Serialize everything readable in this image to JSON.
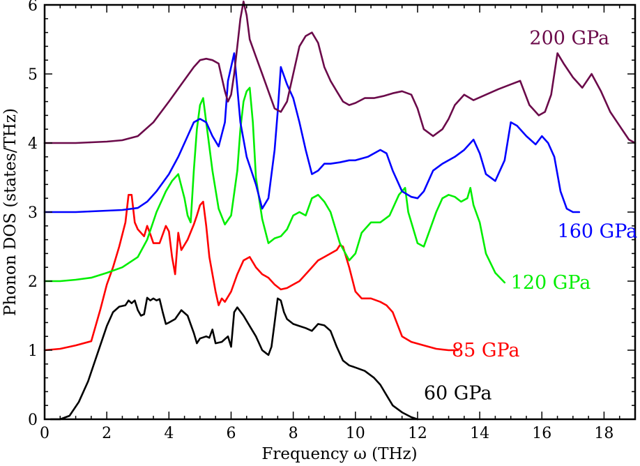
{
  "chart_data": {
    "type": "line",
    "title": "",
    "xlabel": "Frequency ω (THz)",
    "ylabel": "Phonon DOS (states/THz)",
    "xlim": [
      0,
      19
    ],
    "ylim": [
      0,
      6
    ],
    "xticks": [
      0,
      2,
      4,
      6,
      8,
      10,
      12,
      14,
      16,
      18
    ],
    "yticks": [
      0,
      1,
      2,
      3,
      4,
      5,
      6
    ],
    "xtick_labels": [
      "0",
      "2",
      "4",
      "6",
      "8",
      "10",
      "12",
      "14",
      "16",
      "18"
    ],
    "ytick_labels": [
      "0",
      "1",
      "2",
      "3",
      "4",
      "5",
      "6"
    ],
    "grid": false,
    "series": [
      {
        "name": "60 GPa",
        "color": "#000000",
        "label_anchor": [
          12.2,
          0.38
        ],
        "x": [
          0.2,
          0.5,
          0.8,
          1.1,
          1.4,
          1.7,
          2.0,
          2.2,
          2.4,
          2.6,
          2.7,
          2.8,
          2.9,
          3.0,
          3.1,
          3.2,
          3.3,
          3.4,
          3.5,
          3.6,
          3.7,
          3.8,
          3.9,
          4.0,
          4.2,
          4.4,
          4.6,
          4.8,
          4.9,
          5.0,
          5.2,
          5.3,
          5.4,
          5.5,
          5.7,
          5.9,
          6.0,
          6.1,
          6.2,
          6.4,
          6.6,
          6.8,
          7.0,
          7.2,
          7.3,
          7.4,
          7.5,
          7.6,
          7.7,
          7.8,
          8.0,
          8.2,
          8.4,
          8.6,
          8.8,
          9.0,
          9.2,
          9.4,
          9.6,
          9.8,
          10.0,
          10.3,
          10.6,
          10.8,
          11.0,
          11.2,
          11.5,
          11.8,
          12.0
        ],
        "y": [
          0.0,
          0.0,
          0.05,
          0.25,
          0.55,
          0.95,
          1.35,
          1.55,
          1.63,
          1.65,
          1.72,
          1.68,
          1.72,
          1.58,
          1.5,
          1.52,
          1.76,
          1.72,
          1.75,
          1.72,
          1.74,
          1.55,
          1.38,
          1.4,
          1.45,
          1.58,
          1.5,
          1.25,
          1.1,
          1.17,
          1.2,
          1.18,
          1.3,
          1.1,
          1.12,
          1.2,
          1.05,
          1.55,
          1.62,
          1.5,
          1.35,
          1.2,
          1.0,
          0.93,
          1.05,
          1.4,
          1.75,
          1.72,
          1.55,
          1.45,
          1.38,
          1.35,
          1.32,
          1.28,
          1.38,
          1.36,
          1.28,
          1.05,
          0.85,
          0.78,
          0.75,
          0.7,
          0.6,
          0.5,
          0.35,
          0.2,
          0.1,
          0.03,
          0.0
        ]
      },
      {
        "name": "85 GPa",
        "color": "#ff0000",
        "label_anchor": [
          13.1,
          1.0
        ],
        "x": [
          0.0,
          0.5,
          1.0,
          1.5,
          1.8,
          2.0,
          2.2,
          2.4,
          2.6,
          2.7,
          2.8,
          2.9,
          3.0,
          3.1,
          3.2,
          3.3,
          3.4,
          3.5,
          3.7,
          3.9,
          4.0,
          4.1,
          4.2,
          4.3,
          4.4,
          4.6,
          4.8,
          4.9,
          5.0,
          5.1,
          5.2,
          5.3,
          5.5,
          5.6,
          5.7,
          5.8,
          6.0,
          6.2,
          6.4,
          6.6,
          6.8,
          7.0,
          7.2,
          7.4,
          7.6,
          7.8,
          8.0,
          8.2,
          8.4,
          8.6,
          8.8,
          9.0,
          9.2,
          9.4,
          9.5,
          9.6,
          9.8,
          10.0,
          10.2,
          10.5,
          10.8,
          11.0,
          11.2,
          11.5,
          11.8,
          12.2,
          12.6,
          13.0,
          13.3
        ],
        "y": [
          1.0,
          1.02,
          1.07,
          1.13,
          1.6,
          1.95,
          2.2,
          2.5,
          2.85,
          3.25,
          3.25,
          2.85,
          2.75,
          2.7,
          2.65,
          2.8,
          2.68,
          2.55,
          2.55,
          2.8,
          2.72,
          2.35,
          2.1,
          2.7,
          2.45,
          2.6,
          2.82,
          2.95,
          3.1,
          3.15,
          2.8,
          2.35,
          1.85,
          1.65,
          1.75,
          1.7,
          1.85,
          2.1,
          2.3,
          2.35,
          2.2,
          2.1,
          2.05,
          1.95,
          1.88,
          1.9,
          1.95,
          2.0,
          2.1,
          2.2,
          2.3,
          2.35,
          2.4,
          2.45,
          2.52,
          2.5,
          2.2,
          1.85,
          1.75,
          1.75,
          1.7,
          1.65,
          1.55,
          1.2,
          1.12,
          1.07,
          1.02,
          1.0,
          1.0
        ]
      },
      {
        "name": "120 GPa",
        "color": "#00ee00",
        "label_anchor": [
          15.0,
          1.98
        ],
        "x": [
          0.0,
          0.5,
          1.0,
          1.5,
          2.0,
          2.5,
          3.0,
          3.3,
          3.6,
          3.9,
          4.1,
          4.3,
          4.5,
          4.6,
          4.7,
          4.8,
          4.9,
          5.0,
          5.1,
          5.2,
          5.4,
          5.6,
          5.8,
          6.0,
          6.2,
          6.3,
          6.4,
          6.5,
          6.6,
          6.7,
          6.8,
          7.0,
          7.2,
          7.4,
          7.6,
          7.8,
          8.0,
          8.2,
          8.4,
          8.6,
          8.8,
          9.0,
          9.2,
          9.5,
          9.8,
          10.0,
          10.2,
          10.5,
          10.8,
          11.1,
          11.4,
          11.6,
          11.7,
          11.8,
          12.0,
          12.2,
          12.4,
          12.6,
          12.8,
          13.0,
          13.2,
          13.4,
          13.6,
          13.7,
          13.8,
          14.0,
          14.2,
          14.5,
          14.8
        ],
        "y": [
          2.0,
          2.0,
          2.02,
          2.05,
          2.12,
          2.2,
          2.35,
          2.6,
          3.0,
          3.3,
          3.45,
          3.55,
          3.2,
          2.95,
          2.85,
          3.6,
          4.2,
          4.55,
          4.65,
          4.3,
          3.6,
          3.05,
          2.82,
          2.95,
          3.6,
          4.2,
          4.6,
          4.75,
          4.8,
          4.3,
          3.5,
          2.9,
          2.55,
          2.62,
          2.65,
          2.75,
          2.95,
          3.0,
          2.95,
          3.2,
          3.25,
          3.15,
          3.0,
          2.55,
          2.3,
          2.4,
          2.7,
          2.85,
          2.85,
          2.95,
          3.25,
          3.35,
          3.0,
          2.85,
          2.55,
          2.5,
          2.75,
          3.0,
          3.2,
          3.25,
          3.22,
          3.15,
          3.2,
          3.35,
          3.1,
          2.85,
          2.4,
          2.12,
          1.98
        ]
      },
      {
        "name": "160 GPa",
        "color": "#0000ff",
        "label_anchor": [
          16.5,
          2.72
        ],
        "x": [
          0.0,
          0.5,
          1.0,
          1.5,
          2.0,
          2.5,
          3.0,
          3.3,
          3.6,
          4.0,
          4.3,
          4.6,
          4.8,
          5.0,
          5.2,
          5.4,
          5.6,
          5.8,
          5.9,
          6.0,
          6.1,
          6.2,
          6.3,
          6.5,
          6.8,
          7.0,
          7.2,
          7.4,
          7.5,
          7.6,
          7.8,
          8.0,
          8.2,
          8.4,
          8.6,
          8.8,
          9.0,
          9.2,
          9.5,
          9.8,
          10.0,
          10.4,
          10.8,
          11.0,
          11.2,
          11.5,
          11.8,
          12.0,
          12.2,
          12.5,
          12.8,
          13.2,
          13.5,
          13.8,
          14.0,
          14.2,
          14.5,
          14.8,
          15.0,
          15.2,
          15.5,
          15.8,
          16.0,
          16.2,
          16.4,
          16.6,
          16.8,
          17.0,
          17.2
        ],
        "y": [
          3.0,
          3.0,
          3.0,
          3.01,
          3.02,
          3.03,
          3.06,
          3.15,
          3.3,
          3.55,
          3.8,
          4.1,
          4.3,
          4.35,
          4.3,
          4.1,
          3.95,
          4.3,
          4.9,
          5.1,
          5.3,
          4.8,
          4.3,
          3.8,
          3.4,
          3.05,
          3.2,
          3.9,
          4.45,
          5.1,
          4.85,
          4.65,
          4.3,
          3.9,
          3.55,
          3.6,
          3.7,
          3.7,
          3.72,
          3.75,
          3.75,
          3.8,
          3.9,
          3.85,
          3.6,
          3.3,
          3.22,
          3.2,
          3.3,
          3.6,
          3.7,
          3.8,
          3.9,
          4.05,
          3.85,
          3.55,
          3.45,
          3.75,
          4.3,
          4.25,
          4.1,
          3.98,
          4.1,
          4.0,
          3.8,
          3.3,
          3.05,
          3.0,
          3.0
        ]
      },
      {
        "name": "200 GPa",
        "color": "#6b0a4a",
        "label_anchor": [
          15.6,
          5.52
        ],
        "x": [
          0.0,
          0.5,
          1.0,
          1.5,
          2.0,
          2.5,
          3.0,
          3.5,
          4.0,
          4.4,
          4.8,
          5.0,
          5.2,
          5.4,
          5.6,
          5.8,
          5.9,
          6.0,
          6.1,
          6.2,
          6.3,
          6.4,
          6.5,
          6.6,
          6.8,
          7.0,
          7.2,
          7.4,
          7.6,
          7.8,
          8.0,
          8.2,
          8.4,
          8.6,
          8.8,
          9.0,
          9.2,
          9.4,
          9.6,
          9.8,
          10.0,
          10.3,
          10.6,
          10.9,
          11.2,
          11.5,
          11.8,
          12.0,
          12.2,
          12.5,
          12.8,
          13.0,
          13.2,
          13.5,
          13.8,
          14.2,
          14.6,
          15.0,
          15.3,
          15.6,
          15.9,
          16.1,
          16.3,
          16.5,
          16.7,
          17.0,
          17.3,
          17.6,
          17.9,
          18.2,
          18.5,
          18.8,
          19.0
        ],
        "y": [
          4.0,
          4.0,
          4.0,
          4.01,
          4.02,
          4.04,
          4.1,
          4.3,
          4.6,
          4.85,
          5.1,
          5.2,
          5.22,
          5.2,
          5.15,
          4.75,
          4.6,
          4.7,
          5.0,
          5.4,
          5.8,
          6.05,
          5.85,
          5.5,
          5.25,
          5.0,
          4.75,
          4.5,
          4.45,
          4.6,
          5.0,
          5.4,
          5.55,
          5.6,
          5.45,
          5.1,
          4.9,
          4.75,
          4.6,
          4.55,
          4.58,
          4.65,
          4.65,
          4.68,
          4.72,
          4.75,
          4.7,
          4.5,
          4.2,
          4.1,
          4.2,
          4.35,
          4.55,
          4.7,
          4.62,
          4.7,
          4.78,
          4.85,
          4.9,
          4.55,
          4.4,
          4.45,
          4.7,
          5.3,
          5.15,
          4.95,
          4.8,
          5.0,
          4.75,
          4.45,
          4.25,
          4.05,
          4.0
        ]
      }
    ]
  }
}
